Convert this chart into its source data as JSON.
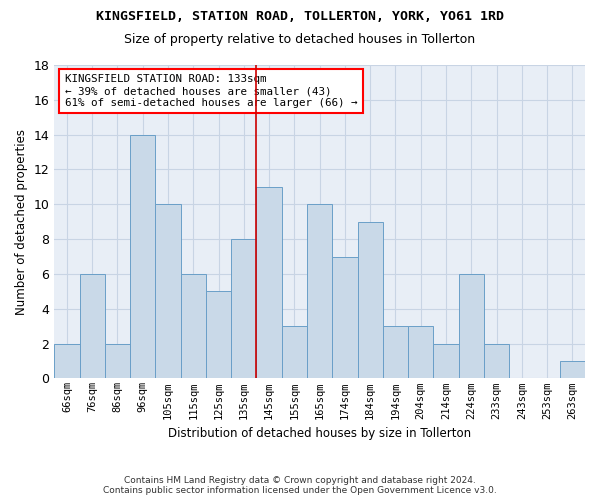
{
  "title": "KINGSFIELD, STATION ROAD, TOLLERTON, YORK, YO61 1RD",
  "subtitle": "Size of property relative to detached houses in Tollerton",
  "xlabel": "Distribution of detached houses by size in Tollerton",
  "ylabel": "Number of detached properties",
  "footer_line1": "Contains HM Land Registry data © Crown copyright and database right 2024.",
  "footer_line2": "Contains public sector information licensed under the Open Government Licence v3.0.",
  "categories": [
    "66sqm",
    "76sqm",
    "86sqm",
    "96sqm",
    "105sqm",
    "115sqm",
    "125sqm",
    "135sqm",
    "145sqm",
    "155sqm",
    "165sqm",
    "174sqm",
    "184sqm",
    "194sqm",
    "204sqm",
    "214sqm",
    "224sqm",
    "233sqm",
    "243sqm",
    "253sqm",
    "263sqm"
  ],
  "values": [
    2,
    6,
    2,
    14,
    10,
    6,
    5,
    8,
    11,
    3,
    10,
    7,
    9,
    3,
    3,
    2,
    6,
    2,
    0,
    0,
    1
  ],
  "bar_color": "#c9d9e8",
  "bar_edge_color": "#6a9fc8",
  "grid_color": "#c8d4e4",
  "background_color": "#e8eef6",
  "vline_color": "#cc0000",
  "vline_x_index": 7,
  "annotation_text_line1": "KINGSFIELD STATION ROAD: 133sqm",
  "annotation_text_line2": "← 39% of detached houses are smaller (43)",
  "annotation_text_line3": "61% of semi-detached houses are larger (66) →",
  "ylim": [
    0,
    18
  ],
  "yticks": [
    0,
    2,
    4,
    6,
    8,
    10,
    12,
    14,
    16,
    18
  ]
}
